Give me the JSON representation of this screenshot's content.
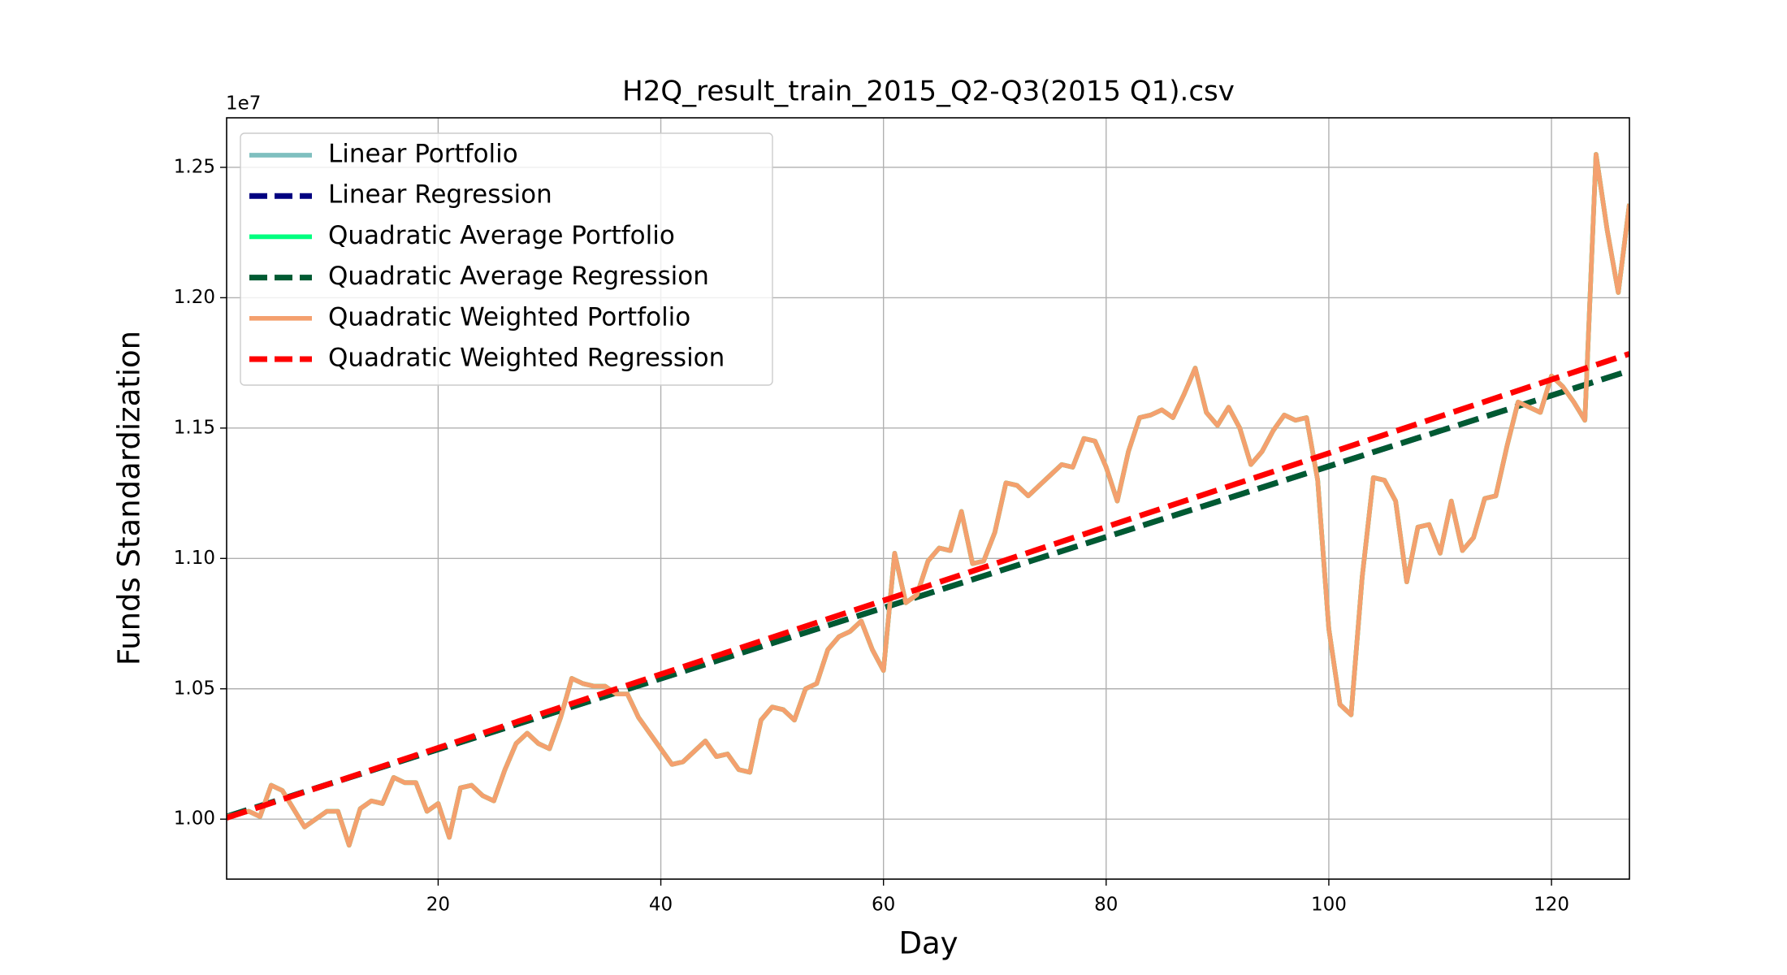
{
  "chart_data": {
    "type": "line",
    "title": "H2Q_result_train_2015_Q2-Q3(2015 Q1).csv",
    "x_label": "Day",
    "y_label": "Funds Standardization",
    "y_offset_label": "1e7",
    "xlim": [
      1,
      127
    ],
    "ylim": [
      0.977,
      1.269
    ],
    "xticks": [
      20,
      40,
      60,
      80,
      100,
      120
    ],
    "yticks": [
      {
        "value": 1,
        "label": "1.00"
      },
      1.05,
      {
        "value": 1.1,
        "label": "1.10"
      },
      1.15,
      {
        "value": 1.2,
        "label": "1.20"
      },
      1.25
    ],
    "grid": true,
    "legend": "upper left",
    "x": [
      1,
      2,
      3,
      4,
      5,
      6,
      7,
      8,
      9,
      10,
      11,
      12,
      13,
      14,
      15,
      16,
      17,
      18,
      19,
      20,
      21,
      22,
      23,
      24,
      25,
      26,
      27,
      28,
      29,
      30,
      31,
      32,
      33,
      34,
      35,
      36,
      37,
      38,
      39,
      40,
      41,
      42,
      43,
      44,
      45,
      46,
      47,
      48,
      49,
      50,
      51,
      52,
      53,
      54,
      55,
      56,
      57,
      58,
      59,
      60,
      61,
      62,
      63,
      64,
      65,
      66,
      67,
      68,
      69,
      70,
      71,
      72,
      73,
      74,
      75,
      76,
      77,
      78,
      79,
      80,
      81,
      82,
      83,
      84,
      85,
      86,
      87,
      88,
      89,
      90,
      91,
      92,
      93,
      94,
      95,
      96,
      97,
      98,
      99,
      100,
      101,
      102,
      103,
      104,
      105,
      106,
      107,
      108,
      109,
      110,
      111,
      112,
      113,
      114,
      115,
      116,
      117,
      118,
      119,
      120,
      121,
      122,
      123,
      124,
      125,
      126,
      127
    ],
    "series": [
      {
        "name": "Linear Portfolio",
        "color": "#7fbfbf",
        "style": "solid",
        "values": [
          1.001,
          1.002,
          1.003,
          1.001,
          1.013,
          1.011,
          1.004,
          0.997,
          1.0,
          1.003,
          1.003,
          0.99,
          1.004,
          1.007,
          1.006,
          1.016,
          1.014,
          1.014,
          1.003,
          1.006,
          0.993,
          1.012,
          1.013,
          1.009,
          1.007,
          1.019,
          1.029,
          1.033,
          1.029,
          1.027,
          1.039,
          1.054,
          1.052,
          1.051,
          1.051,
          1.048,
          1.048,
          1.039,
          1.033,
          1.027,
          1.021,
          1.022,
          1.026,
          1.03,
          1.024,
          1.025,
          1.019,
          1.018,
          1.038,
          1.043,
          1.042,
          1.038,
          1.05,
          1.052,
          1.065,
          1.07,
          1.072,
          1.076,
          1.065,
          1.057,
          1.102,
          1.083,
          1.086,
          1.099,
          1.104,
          1.103,
          1.118,
          1.098,
          1.099,
          1.11,
          1.129,
          1.128,
          1.124,
          1.128,
          1.132,
          1.136,
          1.135,
          1.146,
          1.145,
          1.135,
          1.122,
          1.141,
          1.154,
          1.155,
          1.157,
          1.154,
          1.163,
          1.173,
          1.156,
          1.151,
          1.158,
          1.15,
          1.136,
          1.141,
          1.149,
          1.155,
          1.153,
          1.154,
          1.13,
          1.073,
          1.044,
          1.04,
          1.093,
          1.131,
          1.13,
          1.122,
          1.091,
          1.112,
          1.113,
          1.102,
          1.122,
          1.103,
          1.108,
          1.123,
          1.124,
          1.143,
          1.16,
          1.158,
          1.156,
          1.17,
          1.166,
          1.16,
          1.153,
          1.255,
          1.226,
          1.202,
          1.236
        ]
      },
      {
        "name": "Linear Regression",
        "color": "#000080",
        "style": "dashed",
        "x": [
          1,
          127
        ],
        "values": [
          1.001,
          1.172
        ]
      },
      {
        "name": "Quadratic Average Portfolio",
        "color": "#00ff7f",
        "style": "solid",
        "values": [
          1.001,
          1.002,
          1.003,
          1.001,
          1.013,
          1.011,
          1.004,
          0.997,
          1.0,
          1.003,
          1.003,
          0.99,
          1.004,
          1.007,
          1.006,
          1.016,
          1.014,
          1.014,
          1.003,
          1.006,
          0.993,
          1.012,
          1.013,
          1.009,
          1.007,
          1.019,
          1.029,
          1.033,
          1.029,
          1.027,
          1.039,
          1.054,
          1.052,
          1.051,
          1.051,
          1.048,
          1.048,
          1.039,
          1.033,
          1.027,
          1.021,
          1.022,
          1.026,
          1.03,
          1.024,
          1.025,
          1.019,
          1.018,
          1.038,
          1.043,
          1.042,
          1.038,
          1.05,
          1.052,
          1.065,
          1.07,
          1.072,
          1.076,
          1.065,
          1.057,
          1.102,
          1.083,
          1.086,
          1.099,
          1.104,
          1.103,
          1.118,
          1.098,
          1.099,
          1.11,
          1.129,
          1.128,
          1.124,
          1.128,
          1.132,
          1.136,
          1.135,
          1.146,
          1.145,
          1.135,
          1.122,
          1.141,
          1.154,
          1.155,
          1.157,
          1.154,
          1.163,
          1.173,
          1.156,
          1.151,
          1.158,
          1.15,
          1.136,
          1.141,
          1.149,
          1.155,
          1.153,
          1.154,
          1.13,
          1.073,
          1.044,
          1.04,
          1.093,
          1.131,
          1.13,
          1.122,
          1.091,
          1.112,
          1.113,
          1.102,
          1.122,
          1.103,
          1.108,
          1.123,
          1.124,
          1.143,
          1.16,
          1.158,
          1.156,
          1.17,
          1.166,
          1.16,
          1.153,
          1.255,
          1.226,
          1.202,
          1.236
        ]
      },
      {
        "name": "Quadratic Average Regression",
        "color": "#005a32",
        "style": "dashed",
        "x": [
          1,
          127
        ],
        "values": [
          1.001,
          1.172
        ]
      },
      {
        "name": "Quadratic Weighted Portfolio",
        "color": "#f4a06e",
        "style": "solid",
        "values": [
          1.001,
          1.002,
          1.003,
          1.001,
          1.013,
          1.011,
          1.004,
          0.997,
          1.0,
          1.003,
          1.003,
          0.99,
          1.004,
          1.007,
          1.006,
          1.016,
          1.014,
          1.014,
          1.003,
          1.006,
          0.993,
          1.012,
          1.013,
          1.009,
          1.007,
          1.019,
          1.029,
          1.033,
          1.029,
          1.027,
          1.039,
          1.054,
          1.052,
          1.051,
          1.051,
          1.048,
          1.048,
          1.039,
          1.033,
          1.027,
          1.021,
          1.022,
          1.026,
          1.03,
          1.024,
          1.025,
          1.019,
          1.018,
          1.038,
          1.043,
          1.042,
          1.038,
          1.05,
          1.052,
          1.065,
          1.07,
          1.072,
          1.076,
          1.065,
          1.057,
          1.102,
          1.083,
          1.086,
          1.099,
          1.104,
          1.103,
          1.118,
          1.098,
          1.099,
          1.11,
          1.129,
          1.128,
          1.124,
          1.128,
          1.132,
          1.136,
          1.135,
          1.146,
          1.145,
          1.135,
          1.122,
          1.141,
          1.154,
          1.155,
          1.157,
          1.154,
          1.163,
          1.173,
          1.156,
          1.151,
          1.158,
          1.15,
          1.136,
          1.141,
          1.149,
          1.155,
          1.153,
          1.154,
          1.13,
          1.073,
          1.044,
          1.04,
          1.093,
          1.131,
          1.13,
          1.122,
          1.091,
          1.112,
          1.113,
          1.102,
          1.122,
          1.103,
          1.108,
          1.123,
          1.124,
          1.143,
          1.16,
          1.158,
          1.156,
          1.17,
          1.166,
          1.16,
          1.153,
          1.255,
          1.226,
          1.202,
          1.236
        ]
      },
      {
        "name": "Quadratic Weighted Regression",
        "color": "#ff0000",
        "style": "dashed",
        "x": [
          1,
          127
        ],
        "values": [
          1.0005,
          1.1785
        ]
      }
    ]
  }
}
